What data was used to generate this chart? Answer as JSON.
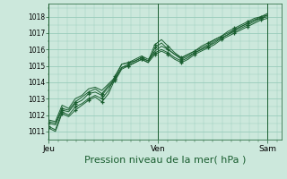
{
  "bg_color": "#cce8dc",
  "grid_color": "#99ccbb",
  "line_color": "#1a5e30",
  "xlabel": "Pression niveau de la mer( hPa )",
  "xlabel_fontsize": 8,
  "ylim": [
    1010.5,
    1018.8
  ],
  "yticks": [
    1011,
    1012,
    1013,
    1014,
    1015,
    1016,
    1017,
    1018
  ],
  "day_labels": [
    "Jeu",
    "Ven",
    "Sam"
  ],
  "day_positions": [
    0,
    24,
    48
  ],
  "xlim": [
    0,
    51
  ],
  "series": [
    [
      1011.3,
      1011.1,
      1012.2,
      1012.0,
      1012.5,
      1012.7,
      1013.0,
      1013.2,
      1013.0,
      1013.5,
      1014.4,
      1015.1,
      1015.2,
      1015.3,
      1015.5,
      1015.3,
      1016.3,
      1016.6,
      1016.2,
      1015.8,
      1015.5,
      1015.7,
      1015.9,
      1016.2,
      1016.4,
      1016.6,
      1016.8,
      1017.1,
      1017.3,
      1017.5,
      1017.7,
      1017.9,
      1018.0,
      1018.2
    ],
    [
      1011.2,
      1011.0,
      1012.1,
      1011.9,
      1012.3,
      1012.6,
      1012.9,
      1013.1,
      1012.8,
      1013.3,
      1014.2,
      1014.9,
      1015.0,
      1015.2,
      1015.4,
      1015.2,
      1016.1,
      1016.4,
      1016.0,
      1015.7,
      1015.4,
      1015.6,
      1015.8,
      1016.0,
      1016.2,
      1016.5,
      1016.7,
      1016.9,
      1017.2,
      1017.4,
      1017.6,
      1017.8,
      1017.9,
      1018.1
    ],
    [
      1011.5,
      1011.4,
      1012.3,
      1012.2,
      1012.7,
      1012.9,
      1013.3,
      1013.4,
      1013.2,
      1013.7,
      1014.1,
      1014.8,
      1015.0,
      1015.2,
      1015.4,
      1015.2,
      1015.7,
      1015.9,
      1015.7,
      1015.4,
      1015.2,
      1015.4,
      1015.7,
      1015.9,
      1016.1,
      1016.3,
      1016.6,
      1016.8,
      1017.0,
      1017.2,
      1017.4,
      1017.6,
      1017.8,
      1017.9
    ],
    [
      1011.6,
      1011.5,
      1012.4,
      1012.3,
      1012.8,
      1013.1,
      1013.4,
      1013.6,
      1013.3,
      1013.8,
      1014.2,
      1014.9,
      1015.1,
      1015.3,
      1015.5,
      1015.3,
      1015.8,
      1016.0,
      1015.8,
      1015.5,
      1015.3,
      1015.5,
      1015.8,
      1016.0,
      1016.2,
      1016.4,
      1016.7,
      1016.9,
      1017.1,
      1017.3,
      1017.5,
      1017.7,
      1017.9,
      1018.0
    ],
    [
      1011.7,
      1011.6,
      1012.6,
      1012.4,
      1013.0,
      1013.2,
      1013.6,
      1013.7,
      1013.5,
      1013.9,
      1014.3,
      1015.1,
      1015.2,
      1015.4,
      1015.6,
      1015.4,
      1015.9,
      1016.2,
      1016.0,
      1015.7,
      1015.5,
      1015.7,
      1015.9,
      1016.1,
      1016.3,
      1016.6,
      1016.8,
      1017.0,
      1017.2,
      1017.4,
      1017.6,
      1017.8,
      1018.0,
      1018.1
    ]
  ],
  "marker_indices": [
    0,
    1,
    2,
    3
  ],
  "figsize": [
    3.2,
    2.0
  ],
  "dpi": 100
}
